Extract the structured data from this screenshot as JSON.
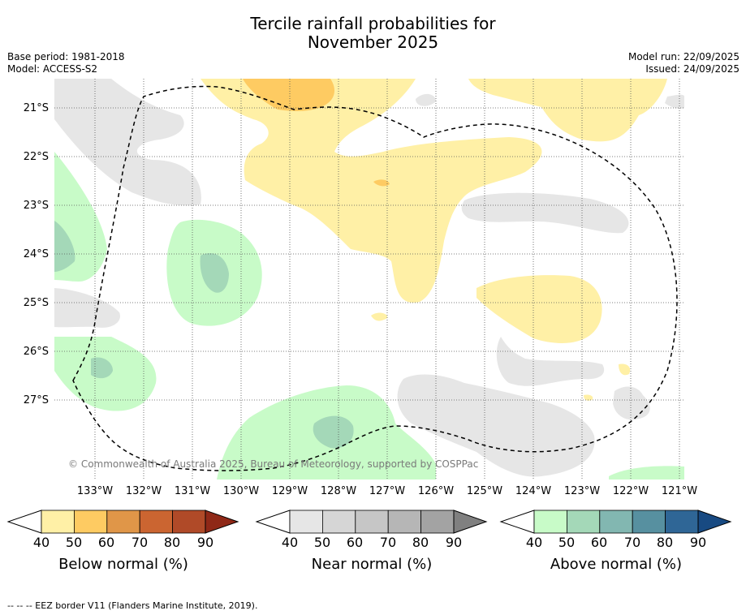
{
  "title_line1": "Tercile rainfall probabilities for",
  "title_line2": "November 2025",
  "base_period": "Base period: 1981-2018",
  "model": "Model: ACCESS-S2",
  "model_run": "Model run: 22/09/2025",
  "issued": "Issued: 24/09/2025",
  "lat_labels": [
    "21°S",
    "22°S",
    "23°S",
    "24°S",
    "25°S",
    "26°S",
    "27°S"
  ],
  "lon_labels": [
    "133°W",
    "132°W",
    "131°W",
    "130°W",
    "129°W",
    "128°W",
    "127°W",
    "126°W",
    "125°W",
    "124°W",
    "123°W",
    "122°W",
    "121°W"
  ],
  "copyright": "© Commonwealth of Australia 2025, Bureau of Meteorology, supported by COSPPac",
  "legend": {
    "ticks": [
      "40",
      "50",
      "60",
      "70",
      "80",
      "90"
    ],
    "below": {
      "title": "Below normal (%)",
      "colors": [
        "#fff0a6",
        "#fecb62",
        "#e09648",
        "#cb6531",
        "#b04a28",
        "#8f2817"
      ]
    },
    "near": {
      "title": "Near normal (%)",
      "colors": [
        "#e6e6e6",
        "#d6d6d6",
        "#c6c6c6",
        "#b6b6b6",
        "#a3a3a3",
        "#808080"
      ]
    },
    "above": {
      "title": "Above normal (%)",
      "colors": [
        "#c8fbc8",
        "#a4d8b8",
        "#82b7b1",
        "#5790a0",
        "#2f6696",
        "#184a82"
      ]
    }
  },
  "footnote": "--  --  -- EEZ border V11 (Flanders Marine Institute, 2019)."
}
